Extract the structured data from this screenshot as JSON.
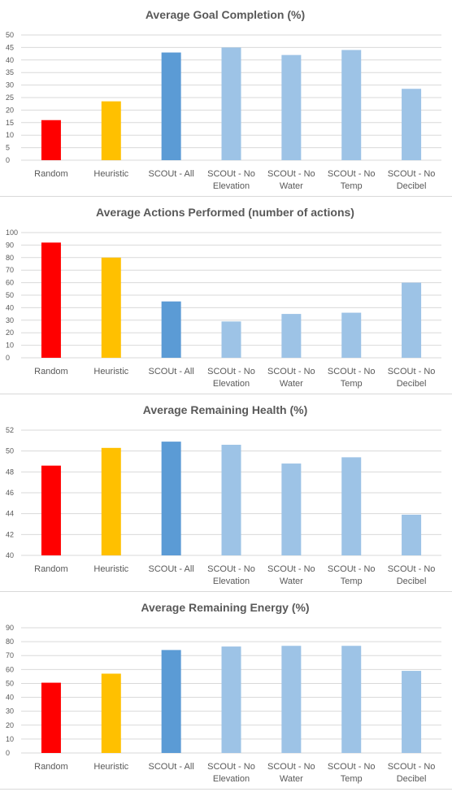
{
  "chart_data": [
    {
      "type": "bar",
      "title": "Average Goal Completion (%)",
      "categories": [
        [
          "Random"
        ],
        [
          "Heuristic"
        ],
        [
          "SCOUt - All"
        ],
        [
          "SCOUt - No",
          "Elevation"
        ],
        [
          "SCOUt - No",
          "Water"
        ],
        [
          "SCOUt - No",
          "Temp"
        ],
        [
          "SCOUt - No",
          "Decibel"
        ]
      ],
      "values": [
        16,
        23.5,
        43,
        45,
        42,
        44,
        28.5
      ],
      "colors": [
        "#ff0000",
        "#ffc000",
        "#5b9bd5",
        "#9dc3e6",
        "#9dc3e6",
        "#9dc3e6",
        "#9dc3e6"
      ],
      "ylim": [
        0,
        50
      ],
      "ticks": [
        0,
        5,
        10,
        15,
        20,
        25,
        30,
        35,
        40,
        45,
        50
      ],
      "grid": true,
      "xlabel": "",
      "ylabel": ""
    },
    {
      "type": "bar",
      "title": "Average Actions Performed (number of actions)",
      "categories": [
        [
          "Random"
        ],
        [
          "Heuristic"
        ],
        [
          "SCOUt - All"
        ],
        [
          "SCOUt - No",
          "Elevation"
        ],
        [
          "SCOUt - No",
          "Water"
        ],
        [
          "SCOUt - No",
          "Temp"
        ],
        [
          "SCOUt - No",
          "Decibel"
        ]
      ],
      "values": [
        92,
        80,
        45,
        29,
        35,
        36,
        60
      ],
      "colors": [
        "#ff0000",
        "#ffc000",
        "#5b9bd5",
        "#9dc3e6",
        "#9dc3e6",
        "#9dc3e6",
        "#9dc3e6"
      ],
      "ylim": [
        0,
        100
      ],
      "ticks": [
        0,
        10,
        20,
        30,
        40,
        50,
        60,
        70,
        80,
        90,
        100
      ],
      "grid": true,
      "xlabel": "",
      "ylabel": ""
    },
    {
      "type": "bar",
      "title": "Average Remaining Health (%)",
      "categories": [
        [
          "Random"
        ],
        [
          "Heuristic"
        ],
        [
          "SCOUt - All"
        ],
        [
          "SCOUt - No",
          "Elevation"
        ],
        [
          "SCOUt - No",
          "Water"
        ],
        [
          "SCOUt - No",
          "Temp"
        ],
        [
          "SCOUt - No",
          "Decibel"
        ]
      ],
      "values": [
        48.6,
        50.3,
        50.9,
        50.6,
        48.8,
        49.4,
        43.9
      ],
      "colors": [
        "#ff0000",
        "#ffc000",
        "#5b9bd5",
        "#9dc3e6",
        "#9dc3e6",
        "#9dc3e6",
        "#9dc3e6"
      ],
      "ylim": [
        40,
        52
      ],
      "ticks": [
        40,
        42,
        44,
        46,
        48,
        50,
        52
      ],
      "grid": true,
      "xlabel": "",
      "ylabel": ""
    },
    {
      "type": "bar",
      "title": "Average Remaining Energy (%)",
      "categories": [
        [
          "Random"
        ],
        [
          "Heuristic"
        ],
        [
          "SCOUt - All"
        ],
        [
          "SCOUt - No",
          "Elevation"
        ],
        [
          "SCOUt - No",
          "Water"
        ],
        [
          "SCOUt - No",
          "Temp"
        ],
        [
          "SCOUt - No",
          "Decibel"
        ]
      ],
      "values": [
        50.5,
        57,
        74,
        76.5,
        77,
        77,
        59
      ],
      "colors": [
        "#ff0000",
        "#ffc000",
        "#5b9bd5",
        "#9dc3e6",
        "#9dc3e6",
        "#9dc3e6",
        "#9dc3e6"
      ],
      "ylim": [
        0,
        90
      ],
      "ticks": [
        0,
        10,
        20,
        30,
        40,
        50,
        60,
        70,
        80,
        90
      ],
      "grid": true,
      "xlabel": "",
      "ylabel": ""
    }
  ]
}
